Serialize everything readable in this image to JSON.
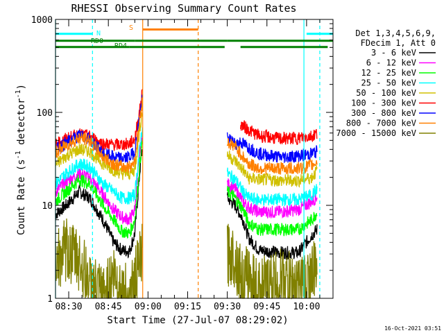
{
  "chart_data": {
    "type": "line",
    "title": "RHESSI Observing Summary Count Rates",
    "xlabel": "Start Time (27-Jul-07 08:29:02)",
    "ylabel_main": "Count Rate (s",
    "ylabel_sup1": "-1",
    "ylabel_mid": " detector",
    "ylabel_sup2": "-1",
    "ylabel_end": ")",
    "xlim": [
      "08:25",
      "10:10"
    ],
    "ylim": [
      1,
      1000
    ],
    "yscale": "log",
    "x_ticks": [
      "08:30",
      "08:45",
      "09:00",
      "09:15",
      "09:30",
      "09:45",
      "10:00"
    ],
    "y_ticks": [
      "1",
      "10",
      "100",
      "1000"
    ],
    "legend_header": [
      "Det 1,3,4,5,6,9,",
      "FDecim 1, Att 0"
    ],
    "legend_position": "right",
    "timestamp": "16-Oct-2021 03:51",
    "flags": [
      {
        "label": "N",
        "color": "#00ffff",
        "segments": [
          [
            "08:25",
            "08:39"
          ],
          [
            "10:00",
            "10:10"
          ]
        ],
        "level": 700
      },
      {
        "label": "S",
        "color": "#ff8000",
        "segments": [
          [
            "08:58",
            "09:19"
          ]
        ],
        "level": 780
      },
      {
        "label": "RD0",
        "color": "#008000",
        "segments": [
          [
            "08:25",
            "08:55"
          ],
          [
            "08:55",
            "09:20"
          ],
          [
            "09:20",
            "09:30"
          ],
          [
            "09:30",
            "10:10"
          ]
        ],
        "level": 590
      },
      {
        "label": "RD4",
        "color": "#008000",
        "segments": [
          [
            "08:25",
            "08:53"
          ],
          [
            "08:53",
            "09:20"
          ],
          [
            "09:20",
            "09:29"
          ],
          [
            "09:35",
            "10:08"
          ]
        ],
        "level": 505
      }
    ],
    "vlines": [
      {
        "t": "08:25",
        "color": "#00ffff",
        "style": "solid"
      },
      {
        "t": "08:39",
        "color": "#00ffff",
        "style": "dashed"
      },
      {
        "t": "08:58",
        "color": "#ff8000",
        "style": "solid"
      },
      {
        "t": "09:19",
        "color": "#ff8000",
        "style": "dashed"
      },
      {
        "t": "09:59",
        "color": "#00ffff",
        "style": "solid"
      },
      {
        "t": "10:05",
        "color": "#00ffff",
        "style": "dashed"
      }
    ],
    "series": [
      {
        "name": "3 - 6 keV",
        "color": "#000000",
        "orbit1": [
          [
            "08:25",
            8
          ],
          [
            "08:29",
            10
          ],
          [
            "08:34",
            14
          ],
          [
            "08:38",
            12
          ],
          [
            "08:43",
            7
          ],
          [
            "08:47",
            4
          ],
          [
            "08:50",
            3.3
          ],
          [
            "08:53",
            3.2
          ],
          [
            "08:55",
            5
          ],
          [
            "08:57",
            25
          ],
          [
            "08:58",
            45
          ]
        ],
        "orbit2": [
          [
            "09:30",
            12
          ],
          [
            "09:33",
            10
          ],
          [
            "09:36",
            7
          ],
          [
            "09:38",
            4.5
          ],
          [
            "09:42",
            3.3
          ],
          [
            "09:50",
            3.1
          ],
          [
            "09:57",
            3.1
          ],
          [
            "10:02",
            4.8
          ],
          [
            "10:04",
            5.5
          ]
        ]
      },
      {
        "name": "6 - 12 keV",
        "color": "#ff00ff",
        "orbit1": [
          [
            "08:25",
            14
          ],
          [
            "08:29",
            18
          ],
          [
            "08:34",
            22
          ],
          [
            "08:38",
            20
          ],
          [
            "08:43",
            13
          ],
          [
            "08:47",
            9
          ],
          [
            "08:50",
            7.5
          ],
          [
            "08:53",
            7
          ],
          [
            "08:55",
            9
          ],
          [
            "08:57",
            40
          ],
          [
            "08:58",
            60
          ]
        ],
        "orbit2": [
          [
            "09:30",
            17
          ],
          [
            "09:33",
            15
          ],
          [
            "09:36",
            11
          ],
          [
            "09:38",
            9.5
          ],
          [
            "09:42",
            8.5
          ],
          [
            "09:50",
            8.5
          ],
          [
            "09:57",
            9
          ],
          [
            "10:02",
            11
          ],
          [
            "10:04",
            12.5
          ]
        ]
      },
      {
        "name": "12 - 25 keV",
        "color": "#00ff00",
        "orbit1": [
          [
            "08:25",
            11
          ],
          [
            "08:29",
            14
          ],
          [
            "08:34",
            19
          ],
          [
            "08:38",
            17
          ],
          [
            "08:43",
            10
          ],
          [
            "08:47",
            7
          ],
          [
            "08:50",
            5.3
          ],
          [
            "08:53",
            5
          ],
          [
            "08:55",
            7
          ],
          [
            "08:57",
            30
          ],
          [
            "08:58",
            55
          ]
        ],
        "orbit2": [
          [
            "09:30",
            14
          ],
          [
            "09:33",
            12
          ],
          [
            "09:36",
            9
          ],
          [
            "09:38",
            6.5
          ],
          [
            "09:42",
            5.5
          ],
          [
            "09:50",
            5.5
          ],
          [
            "09:57",
            5.5
          ],
          [
            "10:02",
            7
          ],
          [
            "10:04",
            8.5
          ]
        ]
      },
      {
        "name": "25 - 50 keV",
        "color": "#00ffff",
        "orbit1": [
          [
            "08:25",
            17
          ],
          [
            "08:29",
            22
          ],
          [
            "08:34",
            28
          ],
          [
            "08:38",
            26
          ],
          [
            "08:43",
            17
          ],
          [
            "08:47",
            14
          ],
          [
            "08:50",
            12
          ],
          [
            "08:53",
            12
          ],
          [
            "08:55",
            13
          ],
          [
            "08:57",
            45
          ],
          [
            "08:58",
            75
          ]
        ],
        "orbit2": [
          [
            "09:30",
            22
          ],
          [
            "09:33",
            19
          ],
          [
            "09:36",
            14
          ],
          [
            "09:38",
            12
          ],
          [
            "09:42",
            11.5
          ],
          [
            "09:50",
            11.5
          ],
          [
            "09:57",
            11.5
          ],
          [
            "10:02",
            13
          ],
          [
            "10:04",
            15
          ]
        ]
      },
      {
        "name": "50 - 100 keV",
        "color": "#d0c000",
        "orbit1": [
          [
            "08:25",
            27
          ],
          [
            "08:29",
            34
          ],
          [
            "08:34",
            40
          ],
          [
            "08:38",
            38
          ],
          [
            "08:43",
            28
          ],
          [
            "08:47",
            24
          ],
          [
            "08:50",
            22
          ],
          [
            "08:53",
            22
          ],
          [
            "08:55",
            24
          ],
          [
            "08:57",
            70
          ],
          [
            "08:58",
            110
          ]
        ],
        "orbit2": [
          [
            "09:30",
            35
          ],
          [
            "09:33",
            30
          ],
          [
            "09:36",
            24
          ],
          [
            "09:38",
            19.5
          ],
          [
            "09:42",
            19
          ],
          [
            "09:50",
            18.5
          ],
          [
            "09:57",
            18.5
          ],
          [
            "10:02",
            20
          ],
          [
            "10:04",
            24
          ]
        ]
      },
      {
        "name": "100 - 300 keV",
        "color": "#ff0000",
        "orbit1": [
          [
            "08:25",
            45
          ],
          [
            "08:29",
            52
          ],
          [
            "08:34",
            58
          ],
          [
            "08:38",
            55
          ],
          [
            "08:43",
            46
          ],
          [
            "08:47",
            45
          ],
          [
            "08:50",
            45
          ],
          [
            "08:53",
            46
          ],
          [
            "08:55",
            52
          ],
          [
            "08:57",
            110
          ],
          [
            "08:58",
            180
          ]
        ],
        "orbit2": [
          [
            "09:35",
            75
          ],
          [
            "09:38",
            65
          ],
          [
            "09:42",
            56
          ],
          [
            "09:50",
            52
          ],
          [
            "09:57",
            53
          ],
          [
            "10:02",
            56
          ],
          [
            "10:04",
            60
          ]
        ]
      },
      {
        "name": "300 - 800 keV",
        "color": "#0000ff",
        "orbit1": [
          [
            "08:25",
            40
          ],
          [
            "08:29",
            47
          ],
          [
            "08:34",
            56
          ],
          [
            "08:38",
            52
          ],
          [
            "08:43",
            36
          ],
          [
            "08:47",
            33
          ],
          [
            "08:50",
            32
          ],
          [
            "08:53",
            33
          ],
          [
            "08:55",
            38
          ],
          [
            "08:57",
            100
          ],
          [
            "08:58",
            150
          ]
        ],
        "orbit2": [
          [
            "09:30",
            52
          ],
          [
            "09:33",
            46
          ],
          [
            "09:35",
            48
          ],
          [
            "09:38",
            42
          ],
          [
            "09:42",
            36
          ],
          [
            "09:50",
            33
          ],
          [
            "09:57",
            34
          ],
          [
            "10:02",
            36
          ],
          [
            "10:04",
            38
          ]
        ]
      },
      {
        "name": "800 - 7000 keV",
        "color": "#ff8000",
        "orbit1": [
          [
            "08:25",
            37
          ],
          [
            "08:29",
            44
          ],
          [
            "08:34",
            53
          ],
          [
            "08:38",
            50
          ],
          [
            "08:43",
            33
          ],
          [
            "08:47",
            28
          ],
          [
            "08:50",
            26
          ],
          [
            "08:53",
            26
          ],
          [
            "08:55",
            30
          ],
          [
            "08:57",
            90
          ],
          [
            "08:58",
            140
          ]
        ],
        "orbit2": [
          [
            "09:30",
            48
          ],
          [
            "09:33",
            43
          ],
          [
            "09:36",
            33
          ],
          [
            "09:38",
            28
          ],
          [
            "09:42",
            25
          ],
          [
            "09:50",
            25
          ],
          [
            "09:57",
            25
          ],
          [
            "10:02",
            27
          ],
          [
            "10:04",
            30
          ]
        ]
      },
      {
        "name": "7000 - 15000 keV",
        "color": "#808000",
        "orbit1": [
          [
            "08:25",
            2.5
          ],
          [
            "08:29",
            3.3
          ],
          [
            "08:34",
            2.6
          ],
          [
            "08:38",
            1.4
          ],
          [
            "08:43",
            1.0
          ],
          [
            "08:47",
            1.8
          ],
          [
            "08:50",
            1.2
          ],
          [
            "08:53",
            1.0
          ],
          [
            "08:57",
            2.4
          ],
          [
            "08:58",
            3.1
          ]
        ],
        "orbit2": [
          [
            "09:30",
            3.0
          ],
          [
            "09:33",
            2.8
          ],
          [
            "09:36",
            1.4
          ],
          [
            "09:38",
            1.8
          ],
          [
            "09:42",
            1.2
          ],
          [
            "09:50",
            1.6
          ],
          [
            "09:57",
            1.3
          ],
          [
            "10:02",
            1.8
          ],
          [
            "10:04",
            2.0
          ]
        ]
      }
    ]
  }
}
